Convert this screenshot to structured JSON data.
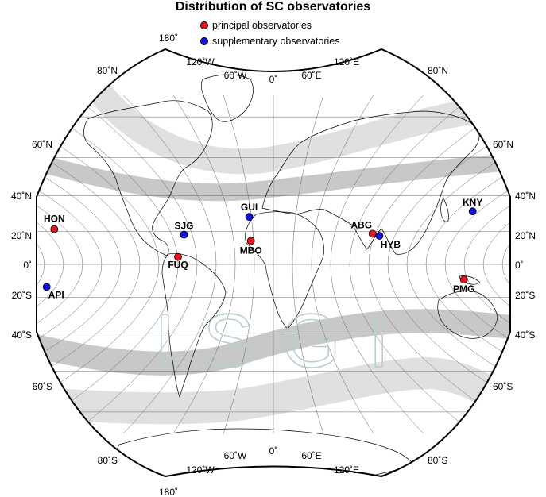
{
  "title": "Distribution of SC observatories",
  "legend": [
    {
      "label": "principal observatories",
      "color": "#e8141b"
    },
    {
      "label": "supplementary observatories",
      "color": "#1414e0"
    }
  ],
  "watermark": "I S G I",
  "colors": {
    "band": "#c8c8c8",
    "band_light": "#e0e0e0",
    "grid": "#666666",
    "coast": "#000000"
  },
  "edge_labels": {
    "top": [
      "180˚",
      "120˚W",
      "60˚W",
      "0˚",
      "60˚E",
      "120˚E"
    ],
    "bottom": [
      "180˚",
      "120˚W",
      "60˚W",
      "0˚",
      "60˚E",
      "120˚E"
    ],
    "left": [
      "80˚N",
      "60˚N",
      "40˚N",
      "20˚N",
      "0˚",
      "20˚S",
      "40˚S",
      "60˚S",
      "80˚S"
    ],
    "right": [
      "80˚N",
      "60˚N",
      "40˚N",
      "20˚N",
      "0˚",
      "20˚S",
      "40˚S",
      "60˚S",
      "80˚S"
    ]
  },
  "observatories": [
    {
      "code": "HON",
      "type": "principal",
      "lon": -158,
      "lat": 21.3
    },
    {
      "code": "SJG",
      "type": "supplementary",
      "lon": -66,
      "lat": 18.1
    },
    {
      "code": "FUQ",
      "type": "principal",
      "lon": -74.7,
      "lat": 4.6
    },
    {
      "code": "GUI",
      "type": "supplementary",
      "lon": -16.4,
      "lat": 28.3
    },
    {
      "code": "MBO",
      "type": "principal",
      "lon": -17,
      "lat": 14.4
    },
    {
      "code": "ABG",
      "type": "principal",
      "lon": 72.9,
      "lat": 18.6
    },
    {
      "code": "HYB",
      "type": "supplementary",
      "lon": 78.6,
      "lat": 17.4
    },
    {
      "code": "KNY",
      "type": "supplementary",
      "lon": 130.9,
      "lat": 31.4
    },
    {
      "code": "PMG",
      "type": "principal",
      "lon": 147.2,
      "lat": -9.4
    },
    {
      "code": "API",
      "type": "supplementary",
      "lon": -171.8,
      "lat": -13.8
    }
  ]
}
